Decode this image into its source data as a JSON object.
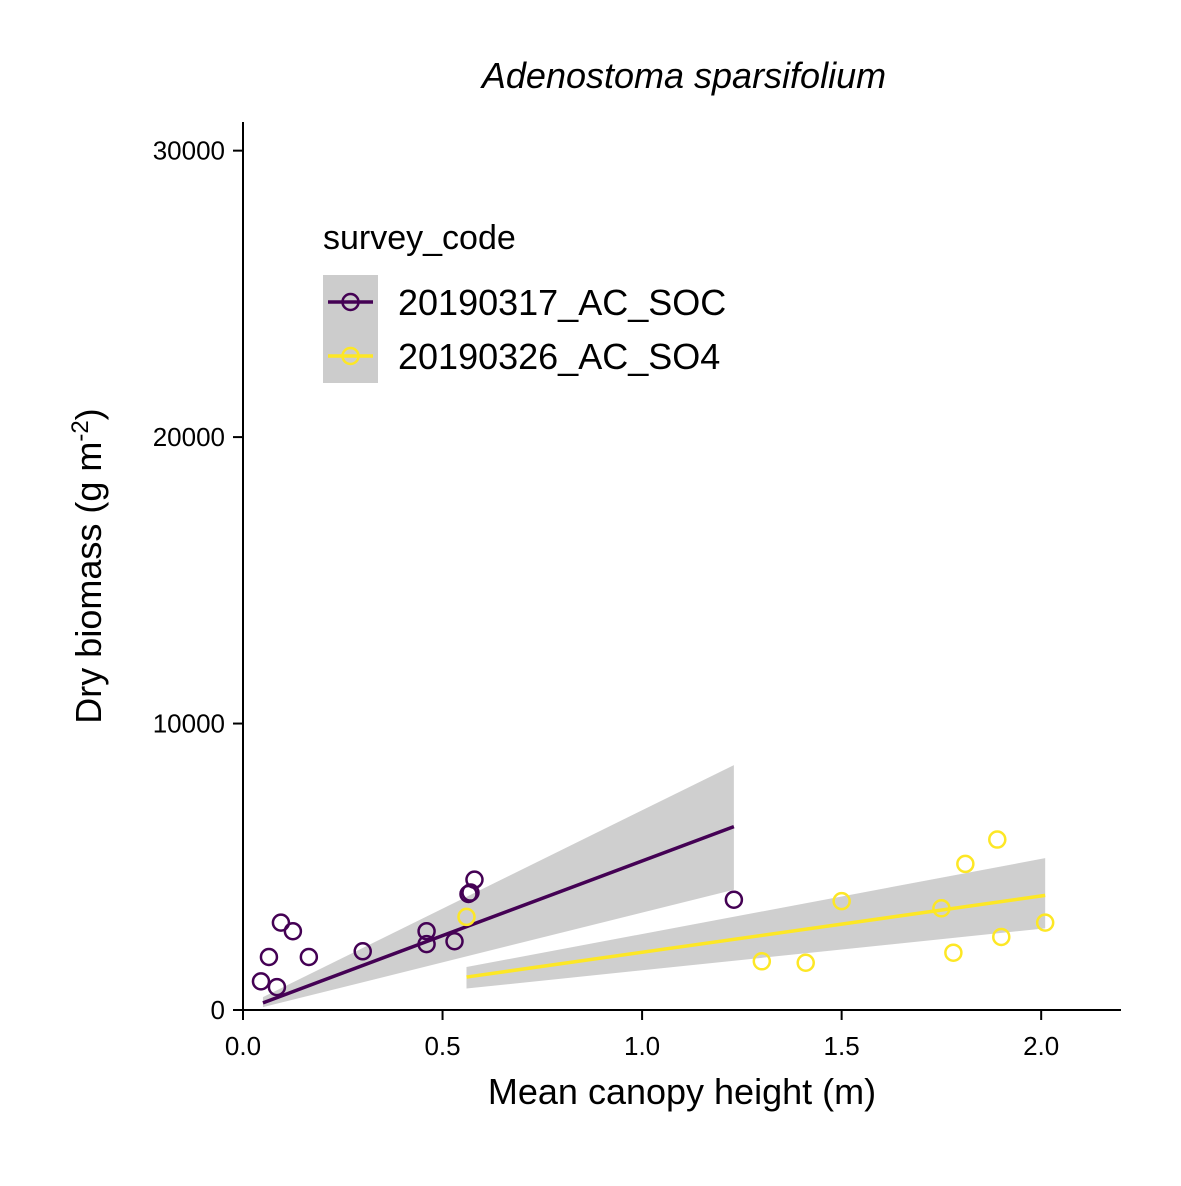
{
  "chart_data": {
    "type": "scatter",
    "title": "Adenostoma sparsifolium",
    "xlabel": "Mean canopy height (m)",
    "ylabel_main": "Dry biomass (g m",
    "ylabel_sup": "-2",
    "ylabel_close": ")",
    "xlim": [
      0,
      2.2
    ],
    "ylim": [
      0,
      31000
    ],
    "x_ticks": [
      0,
      0.5,
      1.0,
      1.5,
      2.0
    ],
    "x_tick_labels": [
      "0.0",
      "0.5",
      "1.0",
      "1.5",
      "2.0"
    ],
    "y_ticks": [
      0,
      10000,
      20000,
      30000
    ],
    "y_tick_labels": [
      "0",
      "10000",
      "20000",
      "30000"
    ],
    "grid": false,
    "legend": {
      "title": "survey_code",
      "position": "top-left"
    },
    "series": [
      {
        "name": "20190317_AC_SOC",
        "color": "#440154",
        "points": [
          [
            0.045,
            1000
          ],
          [
            0.065,
            1850
          ],
          [
            0.085,
            800
          ],
          [
            0.095,
            3050
          ],
          [
            0.125,
            2750
          ],
          [
            0.165,
            1850
          ],
          [
            0.3,
            2050
          ],
          [
            0.46,
            2300
          ],
          [
            0.46,
            2750
          ],
          [
            0.53,
            2400
          ],
          [
            0.565,
            4050
          ],
          [
            0.57,
            4100
          ],
          [
            0.58,
            4550
          ],
          [
            1.23,
            3850
          ]
        ],
        "fit": {
          "x": [
            0.05,
            1.23
          ],
          "y": [
            250,
            6400
          ],
          "lower": [
            100,
            4200
          ],
          "upper": [
            450,
            8550
          ]
        }
      },
      {
        "name": "20190326_AC_SO4",
        "color": "#FDE725",
        "points": [
          [
            0.56,
            3250
          ],
          [
            1.3,
            1700
          ],
          [
            1.41,
            1650
          ],
          [
            1.5,
            3800
          ],
          [
            1.75,
            3550
          ],
          [
            1.78,
            2000
          ],
          [
            1.81,
            5100
          ],
          [
            1.89,
            5950
          ],
          [
            1.9,
            2550
          ],
          [
            2.01,
            3050
          ]
        ],
        "fit": {
          "x": [
            0.56,
            2.01
          ],
          "y": [
            1150,
            4000
          ],
          "lower": [
            750,
            2850
          ],
          "upper": [
            1500,
            5300
          ]
        }
      }
    ]
  }
}
